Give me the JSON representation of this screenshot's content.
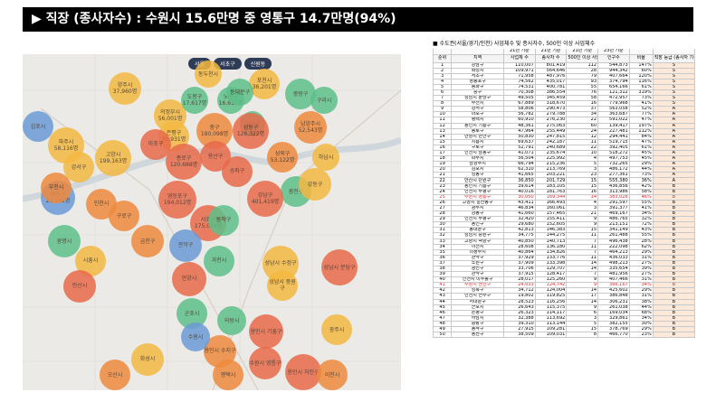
{
  "header": {
    "title": "▶ 직장 (종사자수) : 수원시 15.6만명 중 영통구 14.7만명(94%)"
  },
  "map": {
    "controls": [
      "서울",
      "서초구",
      "신원동"
    ],
    "circles": [
      {
        "name": "파주시",
        "value": "58,116명",
        "color": "#f4b942"
      },
      {
        "name": "양주시",
        "value": "37,960명",
        "color": "#f4b942"
      },
      {
        "name": "의정부시",
        "value": "56,001명",
        "color": "#f4b942"
      },
      {
        "name": "동두천시",
        "value": "",
        "color": "#f4b942"
      },
      {
        "name": "포천시",
        "value": "36,201명",
        "color": "#f4b942"
      },
      {
        "name": "남양주시",
        "value": "52,543명",
        "color": "#ef8a3f"
      },
      {
        "name": "도봉구",
        "value": "17,617명",
        "color": "#5ec08a"
      },
      {
        "name": "노원구",
        "value": "16,611명",
        "color": "#5ec08a"
      },
      {
        "name": "강북구",
        "value": "",
        "color": "#5ec08a"
      },
      {
        "name": "고양시",
        "value": "199,163명",
        "color": "#f4b942"
      },
      {
        "name": "양천구",
        "value": "23,161명",
        "color": "#6c9bd6"
      },
      {
        "name": "김포시",
        "value": "",
        "color": "#6c9bd6"
      },
      {
        "name": "강서구",
        "value": "",
        "color": "#f4b942"
      },
      {
        "name": "은평구",
        "value": "35,931명",
        "color": "#f4b942"
      },
      {
        "name": "성북구",
        "value": "53,122명",
        "color": "#ef8a3f"
      },
      {
        "name": "중구",
        "value": "180,098명",
        "color": "#ef8a3f"
      },
      {
        "name": "종로구",
        "value": "120,688명",
        "color": "#e86a4b"
      },
      {
        "name": "광진구",
        "value": "",
        "color": "#5ec08a"
      },
      {
        "name": "성동구",
        "value": "126,322명",
        "color": "#e86a4b"
      },
      {
        "name": "동대문구",
        "value": "",
        "color": "#5ec08a"
      },
      {
        "name": "중랑구",
        "value": "",
        "color": "#5ec08a"
      },
      {
        "name": "구리시",
        "value": "",
        "color": "#5ec08a"
      },
      {
        "name": "마포구",
        "value": "",
        "color": "#e86a4b"
      },
      {
        "name": "영등포구",
        "value": "194,012명",
        "color": "#e86a4b"
      },
      {
        "name": "용산구",
        "value": "",
        "color": "#e86a4b"
      },
      {
        "name": "강동구",
        "value": "",
        "color": "#f4b942"
      },
      {
        "name": "송파구",
        "value": "",
        "color": "#e86a4b"
      },
      {
        "name": "강남구",
        "value": "401,419명",
        "color": "#e86a4b"
      },
      {
        "name": "서초구",
        "value": "175,034명",
        "color": "#e86a4b"
      },
      {
        "name": "관악구",
        "value": "",
        "color": "#6c9bd6"
      },
      {
        "name": "동작구",
        "value": "",
        "color": "#5ec08a"
      },
      {
        "name": "구로구",
        "value": "",
        "color": "#ef8a3f"
      },
      {
        "name": "금천구",
        "value": "",
        "color": "#ef8a3f"
      },
      {
        "name": "광명시",
        "value": "",
        "color": "#5ec08a"
      },
      {
        "name": "부천시",
        "value": "",
        "color": "#ef8a3f"
      },
      {
        "name": "인천시",
        "value": "",
        "color": "#ef8a3f"
      },
      {
        "name": "하남시",
        "value": "",
        "color": "#f4b942"
      },
      {
        "name": "과천시",
        "value": "",
        "color": "#5ec08a"
      },
      {
        "name": "안양시",
        "value": "",
        "color": "#e86a4b"
      },
      {
        "name": "성남시 분당구",
        "value": "",
        "color": "#e86a4b"
      },
      {
        "name": "성남시 수정구",
        "value": "",
        "color": "#f4b942"
      },
      {
        "name": "성남시 중원구",
        "value": "",
        "color": "#f4b942"
      },
      {
        "name": "시흥시",
        "value": "",
        "color": "#f4b942"
      },
      {
        "name": "안산시",
        "value": "",
        "color": "#e86a4b"
      },
      {
        "name": "군포시",
        "value": "",
        "color": "#5ec08a"
      },
      {
        "name": "의왕시",
        "value": "",
        "color": "#5ec08a"
      },
      {
        "name": "용인시 수지구",
        "value": "",
        "color": "#ef8a3f"
      },
      {
        "name": "용인시 기흥구",
        "value": "",
        "color": "#e86a4b"
      },
      {
        "name": "광주시",
        "value": "",
        "color": "#f4b942"
      },
      {
        "name": "수원시",
        "value": "",
        "color": "#6c9bd6"
      },
      {
        "name": "수원시 영통구",
        "value": "",
        "color": "#e86a4b"
      },
      {
        "name": "화성시",
        "value": "",
        "color": "#f4b942"
      },
      {
        "name": "오산시",
        "value": "",
        "color": "#ef8a3f"
      },
      {
        "name": "용인시 처인구",
        "value": "",
        "color": "#e86a4b"
      },
      {
        "name": "평택시",
        "value": "",
        "color": "#ef8a3f"
      },
      {
        "name": "이천시",
        "value": "",
        "color": "#ef8a3f"
      }
    ]
  },
  "table": {
    "title": "■ 수도권(서울/경기/인천) 사업체수 및 종사자수, 500인 이상 사업체수",
    "subheaders": [
      "21년 기준",
      "21년 기준",
      "21년 기준",
      "23년 기준"
    ],
    "headers": [
      "순위",
      "지역",
      "사업체 수",
      "종사자 수",
      "500인 이상 사업체수",
      "인구수",
      "비율",
      "직장 등급 (종사자 기준)"
    ],
    "rows": [
      [
        "1",
        "강남구",
        "110,007",
        "801,419",
        "112",
        "544,873",
        "147%",
        "S"
      ],
      [
        "2",
        "화성시",
        "109,971",
        "564,646",
        "28",
        "944,342",
        "60%",
        "S"
      ],
      [
        "3",
        "서초구",
        "71,958",
        "487,976",
        "79",
        "407,664",
        "120%",
        "S"
      ],
      [
        "4",
        "영등포구",
        "74,562",
        "435,017",
        "93",
        "374,794",
        "116%",
        "S"
      ],
      [
        "5",
        "송파구",
        "74,531",
        "400,781",
        "55",
        "654,166",
        "61%",
        "S"
      ],
      [
        "6",
        "중구",
        "70,308",
        "386,554",
        "76",
        "121,312",
        "319%",
        "S"
      ],
      [
        "7",
        "성남시 분당구",
        "49,505",
        "345,459",
        "58",
        "472,957",
        "73%",
        "S"
      ],
      [
        "8",
        "부천시",
        "67,889",
        "318,670",
        "16",
        "779,968",
        "41%",
        "S"
      ],
      [
        "9",
        "강서구",
        "58,806",
        "290,473",
        "37",
        "563,058",
        "52%",
        "A"
      ],
      [
        "10",
        "마포구",
        "56,782",
        "279,788",
        "34",
        "363,687",
        "77%",
        "A"
      ],
      [
        "11",
        "평택시",
        "60,910",
        "276,230",
        "22",
        "591,022",
        "47%",
        "A"
      ],
      [
        "12",
        "용인시 기흥구",
        "48,361",
        "275,063",
        "60",
        "139,417",
        "197%",
        "A"
      ],
      [
        "13",
        "종로구",
        "47,964",
        "255,449",
        "24",
        "227,481",
        "112%",
        "A"
      ],
      [
        "14",
        "안양시 만안구",
        "50,830",
        "247,815",
        "12",
        "294,441",
        "84%",
        "A"
      ],
      [
        "15",
        "시흥시",
        "69,637",
        "242,187",
        "11",
        "519,715",
        "47%",
        "A"
      ],
      [
        "16",
        "구로구",
        "52,791",
        "240,689",
        "22",
        "392,405",
        "61%",
        "A"
      ],
      [
        "17",
        "인천시 남동구",
        "41,071",
        "235,674",
        "10",
        "518,272",
        "45%",
        "A"
      ],
      [
        "18",
        "파주시",
        "56,504",
        "225,992",
        "4",
        "497,753",
        "45%",
        "A"
      ],
      [
        "19",
        "남양주시",
        "66,794",
        "215,236",
        "5",
        "732,265",
        "29%",
        "A"
      ],
      [
        "20",
        "김포시",
        "62,310",
        "213,769",
        "3",
        "486,172",
        "44%",
        "A"
      ],
      [
        "21",
        "성동구",
        "41,665",
        "203,221",
        "23",
        "277,361",
        "73%",
        "A"
      ],
      [
        "22",
        "안산시 단원구",
        "36,850",
        "201,729",
        "15",
        "555,380",
        "36%",
        "A"
      ],
      [
        "23",
        "용인시 기흥구",
        "39,614",
        "183,105",
        "15",
        "436,856",
        "42%",
        "B"
      ],
      [
        "24",
        "인천시 부평구",
        "40,016",
        "181,763",
        "16",
        "313,986",
        "58%",
        "B"
      ],
      [
        "25",
        "수원시 영통구",
        "30,050",
        "169,344",
        "14",
        "383,028",
        "46%",
        "B"
      ],
      [
        "26",
        "고양시 일산동구",
        "43,411",
        "166,493",
        "4",
        "291,597",
        "55%",
        "B"
      ],
      [
        "27",
        "광주시",
        "46,834",
        "160,061",
        "3",
        "391,377",
        "41%",
        "B"
      ],
      [
        "28",
        "강동구",
        "41,660",
        "157,465",
        "21",
        "469,167",
        "34%",
        "B"
      ],
      [
        "29",
        "인천시 부평구",
        "32,420",
        "155,411",
        "9",
        "486,765",
        "32%",
        "B"
      ],
      [
        "30",
        "용인구",
        "29,680",
        "152,605",
        "9",
        "213,151",
        "72%",
        "B"
      ],
      [
        "31",
        "동대문구",
        "42,813",
        "146,383",
        "15",
        "341,149",
        "43%",
        "B"
      ],
      [
        "32",
        "성남시 중원구",
        "34,775",
        "144,275",
        "11",
        "261,488",
        "55%",
        "B"
      ],
      [
        "33",
        "고양시 덕양구",
        "40,850",
        "140,713",
        "7",
        "496,438",
        "28%",
        "B"
      ],
      [
        "34",
        "이천시",
        "28,608",
        "136,180",
        "11",
        "222,098",
        "62%",
        "B"
      ],
      [
        "35",
        "의정부시",
        "40,864",
        "134,826",
        "7",
        "464,213",
        "29%",
        "B"
      ],
      [
        "36",
        "관악구",
        "37,929",
        "133,776",
        "11",
        "436,033",
        "31%",
        "B"
      ],
      [
        "37",
        "노원구",
        "37,909",
        "133,398",
        "14",
        "498,213",
        "27%",
        "B"
      ],
      [
        "38",
        "광진구",
        "33,706",
        "129,707",
        "14",
        "335,654",
        "39%",
        "B"
      ],
      [
        "39",
        "관악구",
        "37,915",
        "128,417",
        "7",
        "481,956",
        "27%",
        "B"
      ],
      [
        "40",
        "인천시 미추홀구",
        "28,017",
        "125,260",
        "9",
        "407,466",
        "31%",
        "B"
      ],
      [
        "41",
        "수원시 권선구",
        "24,033",
        "124,742",
        "9",
        "366,167",
        "34%",
        "B"
      ],
      [
        "42",
        "성북구",
        "34,712",
        "124,004",
        "14",
        "425,602",
        "29%",
        "B"
      ],
      [
        "43",
        "인천시 연수구",
        "19,802",
        "119,825",
        "17",
        "386,848",
        "31%",
        "B"
      ],
      [
        "44",
        "서대문구",
        "28,523",
        "116,256",
        "14",
        "306,231",
        "38%",
        "B"
      ],
      [
        "45",
        "군포시",
        "26,643",
        "115,375",
        "9",
        "261,038",
        "44%",
        "B"
      ],
      [
        "46",
        "은평구",
        "26,323",
        "114,117",
        "6",
        "169,034",
        "68%",
        "B"
      ],
      [
        "47",
        "하남시",
        "32,388",
        "113,692",
        "3",
        "329,861",
        "34%",
        "B"
      ],
      [
        "48",
        "중랑구",
        "39,310",
        "113,144",
        "5",
        "382,155",
        "30%",
        "B"
      ],
      [
        "49",
        "동작구",
        "27,915",
        "109,281",
        "15",
        "378,769",
        "29%",
        "B"
      ],
      [
        "50",
        "용산구",
        "38,509",
        "109,031",
        "8",
        "466,770",
        "23%",
        "B"
      ]
    ]
  }
}
